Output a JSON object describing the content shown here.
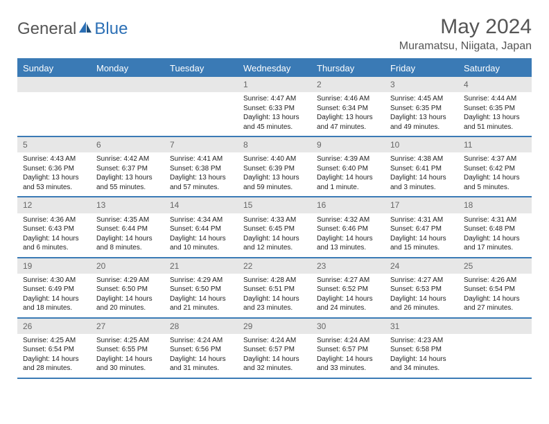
{
  "logo": {
    "part1": "General",
    "part2": "Blue"
  },
  "title": "May 2024",
  "location": "Muramatsu, Niigata, Japan",
  "colors": {
    "header_bg": "#3a7ab5",
    "daynum_bg": "#e7e7e7"
  },
  "day_names": [
    "Sunday",
    "Monday",
    "Tuesday",
    "Wednesday",
    "Thursday",
    "Friday",
    "Saturday"
  ],
  "weeks": [
    [
      null,
      null,
      null,
      {
        "n": "1",
        "sr": "Sunrise: 4:47 AM",
        "ss": "Sunset: 6:33 PM",
        "dl": "Daylight: 13 hours and 45 minutes."
      },
      {
        "n": "2",
        "sr": "Sunrise: 4:46 AM",
        "ss": "Sunset: 6:34 PM",
        "dl": "Daylight: 13 hours and 47 minutes."
      },
      {
        "n": "3",
        "sr": "Sunrise: 4:45 AM",
        "ss": "Sunset: 6:35 PM",
        "dl": "Daylight: 13 hours and 49 minutes."
      },
      {
        "n": "4",
        "sr": "Sunrise: 4:44 AM",
        "ss": "Sunset: 6:35 PM",
        "dl": "Daylight: 13 hours and 51 minutes."
      }
    ],
    [
      {
        "n": "5",
        "sr": "Sunrise: 4:43 AM",
        "ss": "Sunset: 6:36 PM",
        "dl": "Daylight: 13 hours and 53 minutes."
      },
      {
        "n": "6",
        "sr": "Sunrise: 4:42 AM",
        "ss": "Sunset: 6:37 PM",
        "dl": "Daylight: 13 hours and 55 minutes."
      },
      {
        "n": "7",
        "sr": "Sunrise: 4:41 AM",
        "ss": "Sunset: 6:38 PM",
        "dl": "Daylight: 13 hours and 57 minutes."
      },
      {
        "n": "8",
        "sr": "Sunrise: 4:40 AM",
        "ss": "Sunset: 6:39 PM",
        "dl": "Daylight: 13 hours and 59 minutes."
      },
      {
        "n": "9",
        "sr": "Sunrise: 4:39 AM",
        "ss": "Sunset: 6:40 PM",
        "dl": "Daylight: 14 hours and 1 minute."
      },
      {
        "n": "10",
        "sr": "Sunrise: 4:38 AM",
        "ss": "Sunset: 6:41 PM",
        "dl": "Daylight: 14 hours and 3 minutes."
      },
      {
        "n": "11",
        "sr": "Sunrise: 4:37 AM",
        "ss": "Sunset: 6:42 PM",
        "dl": "Daylight: 14 hours and 5 minutes."
      }
    ],
    [
      {
        "n": "12",
        "sr": "Sunrise: 4:36 AM",
        "ss": "Sunset: 6:43 PM",
        "dl": "Daylight: 14 hours and 6 minutes."
      },
      {
        "n": "13",
        "sr": "Sunrise: 4:35 AM",
        "ss": "Sunset: 6:44 PM",
        "dl": "Daylight: 14 hours and 8 minutes."
      },
      {
        "n": "14",
        "sr": "Sunrise: 4:34 AM",
        "ss": "Sunset: 6:44 PM",
        "dl": "Daylight: 14 hours and 10 minutes."
      },
      {
        "n": "15",
        "sr": "Sunrise: 4:33 AM",
        "ss": "Sunset: 6:45 PM",
        "dl": "Daylight: 14 hours and 12 minutes."
      },
      {
        "n": "16",
        "sr": "Sunrise: 4:32 AM",
        "ss": "Sunset: 6:46 PM",
        "dl": "Daylight: 14 hours and 13 minutes."
      },
      {
        "n": "17",
        "sr": "Sunrise: 4:31 AM",
        "ss": "Sunset: 6:47 PM",
        "dl": "Daylight: 14 hours and 15 minutes."
      },
      {
        "n": "18",
        "sr": "Sunrise: 4:31 AM",
        "ss": "Sunset: 6:48 PM",
        "dl": "Daylight: 14 hours and 17 minutes."
      }
    ],
    [
      {
        "n": "19",
        "sr": "Sunrise: 4:30 AM",
        "ss": "Sunset: 6:49 PM",
        "dl": "Daylight: 14 hours and 18 minutes."
      },
      {
        "n": "20",
        "sr": "Sunrise: 4:29 AM",
        "ss": "Sunset: 6:50 PM",
        "dl": "Daylight: 14 hours and 20 minutes."
      },
      {
        "n": "21",
        "sr": "Sunrise: 4:29 AM",
        "ss": "Sunset: 6:50 PM",
        "dl": "Daylight: 14 hours and 21 minutes."
      },
      {
        "n": "22",
        "sr": "Sunrise: 4:28 AM",
        "ss": "Sunset: 6:51 PM",
        "dl": "Daylight: 14 hours and 23 minutes."
      },
      {
        "n": "23",
        "sr": "Sunrise: 4:27 AM",
        "ss": "Sunset: 6:52 PM",
        "dl": "Daylight: 14 hours and 24 minutes."
      },
      {
        "n": "24",
        "sr": "Sunrise: 4:27 AM",
        "ss": "Sunset: 6:53 PM",
        "dl": "Daylight: 14 hours and 26 minutes."
      },
      {
        "n": "25",
        "sr": "Sunrise: 4:26 AM",
        "ss": "Sunset: 6:54 PM",
        "dl": "Daylight: 14 hours and 27 minutes."
      }
    ],
    [
      {
        "n": "26",
        "sr": "Sunrise: 4:25 AM",
        "ss": "Sunset: 6:54 PM",
        "dl": "Daylight: 14 hours and 28 minutes."
      },
      {
        "n": "27",
        "sr": "Sunrise: 4:25 AM",
        "ss": "Sunset: 6:55 PM",
        "dl": "Daylight: 14 hours and 30 minutes."
      },
      {
        "n": "28",
        "sr": "Sunrise: 4:24 AM",
        "ss": "Sunset: 6:56 PM",
        "dl": "Daylight: 14 hours and 31 minutes."
      },
      {
        "n": "29",
        "sr": "Sunrise: 4:24 AM",
        "ss": "Sunset: 6:57 PM",
        "dl": "Daylight: 14 hours and 32 minutes."
      },
      {
        "n": "30",
        "sr": "Sunrise: 4:24 AM",
        "ss": "Sunset: 6:57 PM",
        "dl": "Daylight: 14 hours and 33 minutes."
      },
      {
        "n": "31",
        "sr": "Sunrise: 4:23 AM",
        "ss": "Sunset: 6:58 PM",
        "dl": "Daylight: 14 hours and 34 minutes."
      },
      null
    ]
  ]
}
